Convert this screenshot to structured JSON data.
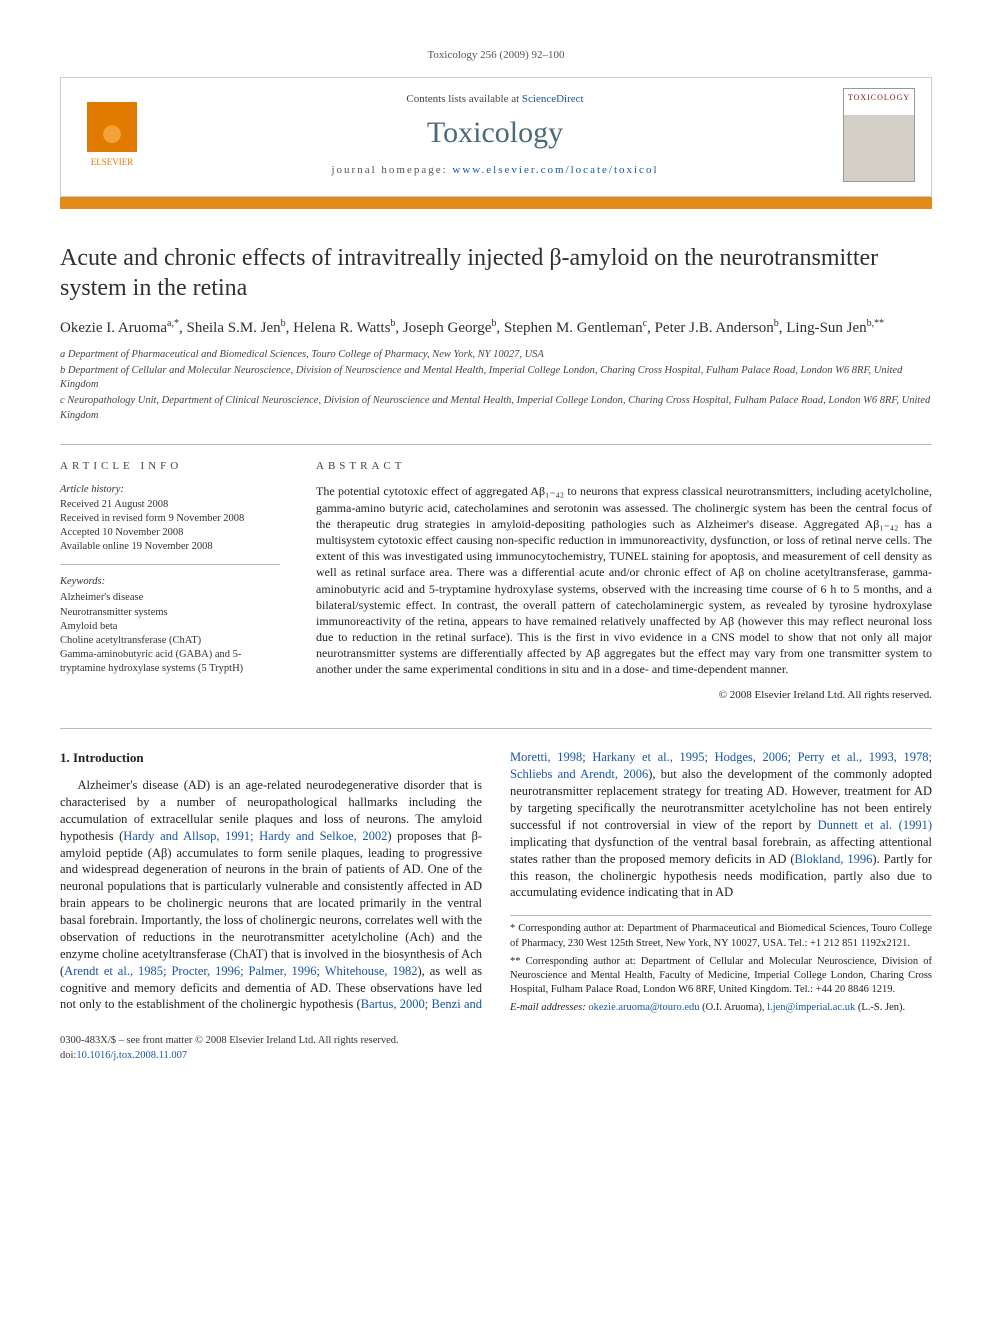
{
  "running_head": "Toxicology 256 (2009) 92–100",
  "banner": {
    "contents_prefix": "Contents lists available at ",
    "contents_link": "ScienceDirect",
    "journal": "Toxicology",
    "homepage_prefix": "journal homepage: ",
    "homepage_url": "www.elsevier.com/locate/toxicol",
    "publisher_label": "ELSEVIER",
    "cover_label": "TOXICOLOGY"
  },
  "title": "Acute and chronic effects of intravitreally injected β-amyloid on the neurotransmitter system in the retina",
  "authors_html": "Okezie I. Aruoma<sup>a,*</sup>, Sheila S.M. Jen<sup>b</sup>, Helena R. Watts<sup>b</sup>, Joseph George<sup>b</sup>, Stephen M. Gentleman<sup>c</sup>, Peter J.B. Anderson<sup>b</sup>, Ling-Sun Jen<sup>b,**</sup>",
  "affiliations": [
    "a Department of Pharmaceutical and Biomedical Sciences, Touro College of Pharmacy, New York, NY 10027, USA",
    "b Department of Cellular and Molecular Neuroscience, Division of Neuroscience and Mental Health, Imperial College London, Charing Cross Hospital, Fulham Palace Road, London W6 8RF, United Kingdom",
    "c Neuropathology Unit, Department of Clinical Neuroscience, Division of Neuroscience and Mental Health, Imperial College London, Charing Cross Hospital, Fulham Palace Road, London W6 8RF, United Kingdom"
  ],
  "article_info": {
    "heading": "article info",
    "history_label": "Article history:",
    "history": [
      "Received 21 August 2008",
      "Received in revised form 9 November 2008",
      "Accepted 10 November 2008",
      "Available online 19 November 2008"
    ],
    "keywords_label": "Keywords:",
    "keywords": [
      "Alzheimer's disease",
      "Neurotransmitter systems",
      "Amyloid beta",
      "Choline acetyltransferase (ChAT)",
      "Gamma-aminobutyric acid (GABA) and 5-tryptamine hydroxylase systems (5 TryptH)"
    ]
  },
  "abstract": {
    "heading": "abstract",
    "text": "The potential cytotoxic effect of aggregated Aβ₁₋₄₂ to neurons that express classical neurotransmitters, including acetylcholine, gamma-amino butyric acid, catecholamines and serotonin was assessed. The cholinergic system has been the central focus of the therapeutic drug strategies in amyloid-depositing pathologies such as Alzheimer's disease. Aggregated Aβ₁₋₄₂ has a multisystem cytotoxic effect causing non-specific reduction in immunoreactivity, dysfunction, or loss of retinal nerve cells. The extent of this was investigated using immunocytochemistry, TUNEL staining for apoptosis, and measurement of cell density as well as retinal surface area. There was a differential acute and/or chronic effect of Aβ on choline acetyltransferase, gamma-aminobutyric acid and 5-tryptamine hydroxylase systems, observed with the increasing time course of 6 h to 5 months, and a bilateral/systemic effect. In contrast, the overall pattern of catecholaminergic system, as revealed by tyrosine hydroxylase immunoreactivity of the retina, appears to have remained relatively unaffected by Aβ (however this may reflect neuronal loss due to reduction in the retinal surface). This is the first in vivo evidence in a CNS model to show that not only all major neurotransmitter systems are differentially affected by Aβ aggregates but the effect may vary from one transmitter system to another under the same experimental conditions in situ and in a dose- and time-dependent manner.",
    "copyright": "© 2008 Elsevier Ireland Ltd. All rights reserved."
  },
  "section1": {
    "heading": "1. Introduction",
    "para1_pre": "Alzheimer's disease (AD) is an age-related neurodegenerative disorder that is characterised by a number of neuropathological hallmarks including the accumulation of extracellular senile plaques and loss of neurons. The amyloid hypothesis (",
    "para1_link1": "Hardy and Allsop, 1991; Hardy and Selkoe, 2002",
    "para1_post1": ") proposes that β-amyloid peptide (Aβ) accumulates to form senile plaques, leading to progressive and widespread degeneration of neurons in the brain of patients of AD. One of the neuronal populations that is particularly vulnerable and consistently affected in AD brain appears to be cholinergic neurons that are located primarily in the ventral basal forebrain. Importantly, the loss of cholinergic neurons, correlates well with the observation of reductions in the neurotransmitter acetylcholine (Ach) and the enzyme choline acetyltransferase (ChAT) that is involved in the biosynthesis of Ach (",
    "para1_link2": "Arendt et al., 1985; Procter, 1996; Palmer, 1996; Whitehouse, 1982",
    "para1_post2": "), as well as cognitive and memory deficits and dementia of AD. These observations have led not only to the establishment of the cholinergic hypothesis (",
    "para1_link3": "Bartus, 2000; Benzi and Moretti, 1998; Harkany et al., 1995; Hodges, 2006; Perry et al., 1993, 1978; Schliebs and Arendt, 2006",
    "para1_post3": "), but also the development of the commonly adopted neurotransmitter replacement strategy for treating AD. However, treatment for AD by targeting specifically the neurotransmitter acetylcholine has not been entirely successful if not controversial in view of the report by ",
    "para1_link4": "Dunnett et al. (1991)",
    "para1_post4": " implicating that dysfunction of the ventral basal forebrain, as affecting attentional states rather than the proposed memory deficits in AD (",
    "para1_link5": "Blokland, 1996",
    "para1_post5": "). Partly for this reason, the cholinergic hypothesis needs modification, partly also due to accumulating evidence indicating that in AD"
  },
  "footnotes": {
    "corr1": "* Corresponding author at: Department of Pharmaceutical and Biomedical Sciences, Touro College of Pharmacy, 230 West 125th Street, New York, NY 10027, USA. Tel.: +1 212 851 1192x2121.",
    "corr2": "** Corresponding author at: Department of Cellular and Molecular Neuroscience, Division of Neuroscience and Mental Health, Faculty of Medicine, Imperial College London, Charing Cross Hospital, Fulham Palace Road, London W6 8RF, United Kingdom. Tel.: +44 20 8846 1219.",
    "emails_label": "E-mail addresses: ",
    "email1": "okezie.aruoma@touro.edu",
    "email1_who": " (O.I. Aruoma), ",
    "email2": "l.jen@imperial.ac.uk",
    "email2_who": " (L.-S. Jen)."
  },
  "bottom": {
    "line1": "0300-483X/$ – see front matter © 2008 Elsevier Ireland Ltd. All rights reserved.",
    "doi_label": "doi:",
    "doi": "10.1016/j.tox.2008.11.007"
  },
  "colors": {
    "accent_orange": "#e38b1a",
    "link_blue": "#1856a7",
    "journal_teal": "#4a6a7a"
  }
}
